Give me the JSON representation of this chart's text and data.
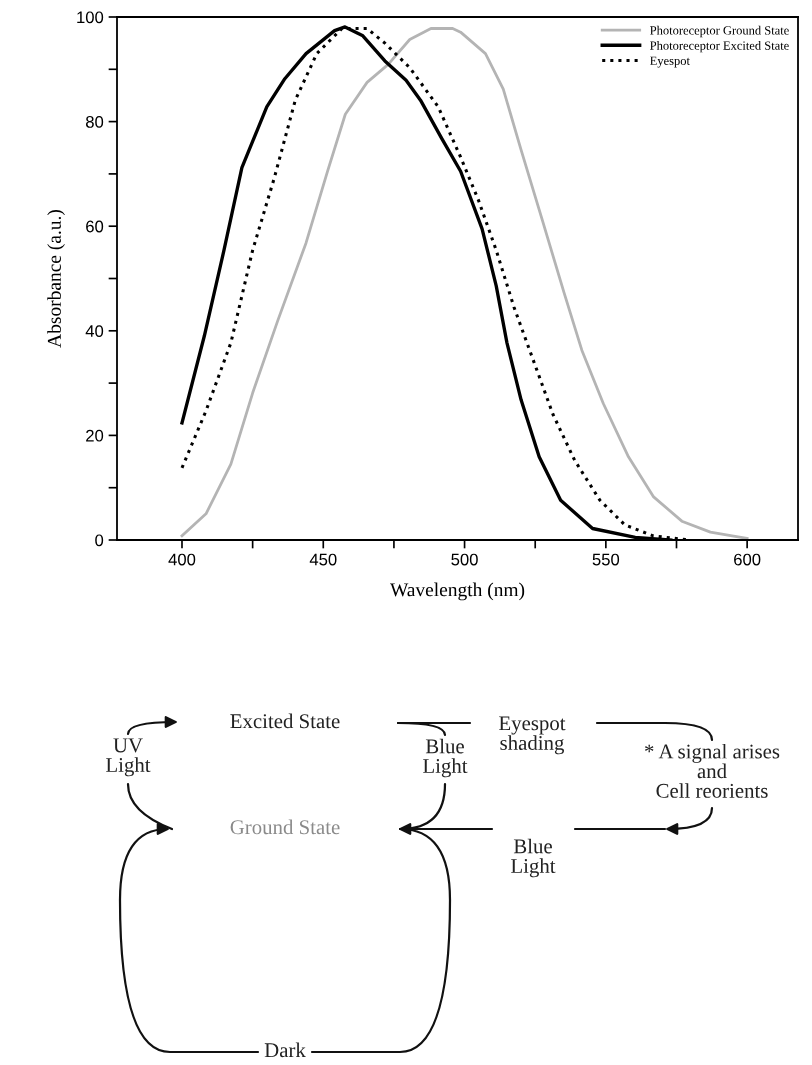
{
  "chart_data": [
    {
      "type": "line",
      "xlabel": "Wavelength (nm)",
      "ylabel": "Absorbance (a.u.)",
      "xlim": [
        377,
        618
      ],
      "ylim": [
        0,
        100
      ],
      "xticks": [
        400,
        {
          "value": 425,
          "label": null
        },
        450,
        {
          "value": 475,
          "label": null
        },
        500,
        {
          "value": 525,
          "label": null
        },
        550,
        {
          "value": 575,
          "label": null
        },
        600
      ],
      "yticks": [
        0,
        {
          "value": 10,
          "label": null
        },
        20,
        {
          "value": 30,
          "label": null
        },
        40,
        {
          "value": 50,
          "label": null
        },
        60,
        {
          "value": 70,
          "label": null
        },
        80,
        {
          "value": 90,
          "label": null
        },
        100
      ],
      "grid": false,
      "legend": "top right",
      "marker": "none",
      "series": [
        {
          "name": "Photoreceptor Ground State",
          "color": "#b4b4b4",
          "line_style": "solid",
          "x": [
            400,
            408.5,
            417.3,
            425,
            433.8,
            443.9,
            451.5,
            457.8,
            465.5,
            472.9,
            480.6,
            488.1,
            495.8,
            498.6,
            507.4,
            513.7,
            520,
            527.6,
            535.2,
            541.5,
            549.1,
            558,
            566.8,
            576.9,
            587,
            594.7,
            600
          ],
          "values": [
            0.8,
            5,
            14.5,
            28.1,
            41.8,
            56.8,
            70.5,
            81.4,
            87.5,
            90.9,
            95.7,
            97.8,
            97.8,
            97.1,
            93,
            86.2,
            74.6,
            61,
            47.3,
            36.3,
            26.1,
            15.9,
            8.3,
            3.6,
            1.5,
            0.8,
            0.3
          ]
        },
        {
          "name": "Photoreceptor Excited State",
          "color": "#000000",
          "line_style": "solid",
          "x": [
            400,
            407.9,
            414.9,
            421.2,
            430,
            436.4,
            443.9,
            454,
            457.7,
            464,
            471.8,
            479.3,
            484.4,
            492,
            498.6,
            506.2,
            511.2,
            515,
            520,
            526.4,
            534,
            545.3,
            560.4,
            573
          ],
          "values": [
            22.4,
            39,
            55.5,
            71.2,
            82.8,
            88.2,
            93,
            97.4,
            98.1,
            96.4,
            91.6,
            87.9,
            84.1,
            76.7,
            70.5,
            59.5,
            48.6,
            37.7,
            26.8,
            15.9,
            7.6,
            2.2,
            0.5,
            0
          ]
        },
        {
          "name": "Eyespot",
          "color": "#000000",
          "line_style": "dotted",
          "x": [
            400,
            408.5,
            417.3,
            425,
            432.6,
            440.1,
            447.7,
            456.6,
            465.5,
            471.8,
            480.6,
            490.7,
            498.6,
            504.9,
            511.2,
            517.5,
            523.9,
            531.3,
            539,
            547.9,
            556.7,
            566.7,
            579.5
          ],
          "values": [
            13.8,
            24.7,
            37.7,
            55.4,
            69.1,
            84.1,
            93,
            97.8,
            97.8,
            95,
            90.3,
            82.8,
            73.2,
            65,
            55.4,
            44.5,
            35,
            24,
            15.2,
            7.6,
            2.9,
            0.8,
            0
          ]
        }
      ]
    },
    {
      "type": "other",
      "annotations": [
        "Excited State",
        "Ground State",
        "UV\nLight",
        "Blue\nLight",
        "Eyespot\nshading",
        "* A signal arises\nand\nCell reorients",
        "Blue\nLight",
        "Dark"
      ]
    }
  ]
}
